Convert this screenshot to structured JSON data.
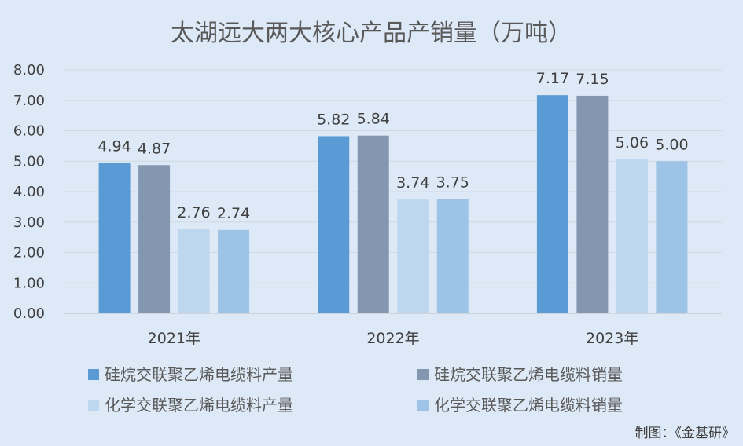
{
  "chart_data": {
    "type": "bar",
    "title": "太湖远大两大核心产品产销量（万吨）",
    "categories": [
      "2021年",
      "2022年",
      "2023年"
    ],
    "series": [
      {
        "name": "硅烷交联聚乙烯电缆料产量",
        "values": [
          4.94,
          5.82,
          7.17
        ],
        "labels": [
          "4.94",
          "5.82",
          "7.17"
        ],
        "color": "#5b9bd5"
      },
      {
        "name": "硅烷交联聚乙烯电缆料销量",
        "values": [
          4.87,
          5.84,
          7.15
        ],
        "labels": [
          "4.87",
          "5.84",
          "7.15"
        ],
        "color": "#8497b0"
      },
      {
        "name": "化学交联聚乙烯电缆料产量",
        "values": [
          2.76,
          3.74,
          5.06
        ],
        "labels": [
          "2.76",
          "3.74",
          "5.06"
        ],
        "color": "#bdd7ee"
      },
      {
        "name": "化学交联聚乙烯电缆料销量",
        "values": [
          2.74,
          3.75,
          5.0
        ],
        "labels": [
          "2.74",
          "3.75",
          "5.00"
        ],
        "color": "#9dc3e6"
      }
    ],
    "ylim": [
      0,
      8
    ],
    "yticks": [
      "0.00",
      "1.00",
      "2.00",
      "3.00",
      "4.00",
      "5.00",
      "6.00",
      "7.00",
      "8.00"
    ],
    "grid": true,
    "legend_position": "bottom",
    "source": "制图：《金基研》"
  }
}
